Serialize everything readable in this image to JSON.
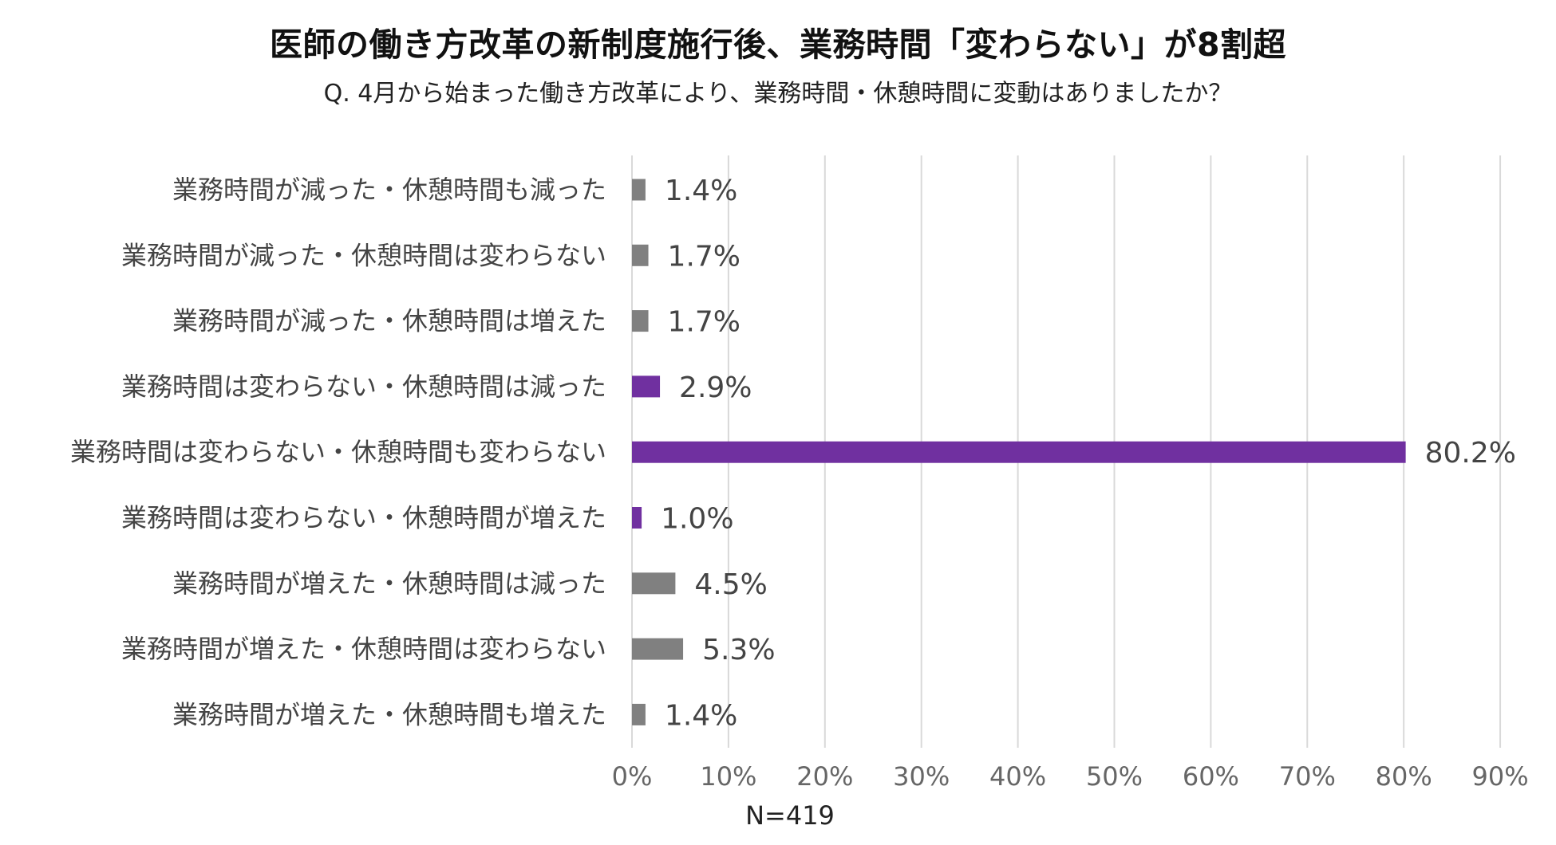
{
  "title": "医師の働き方改革の新制度施行後、業務時間「変わらない」が8割超",
  "subtitle": "Q. 4月から始まった働き方改革により、業務時間・休憩時間に変動はありましたか？",
  "note": "N=419",
  "colors": {
    "gray": "#808080",
    "purple": "#7030A0",
    "grid": "#d9d9d9"
  },
  "chart_data": {
    "type": "bar",
    "orientation": "horizontal",
    "categories": [
      "業務時間が減った・休憩時間も減った",
      "業務時間が減った・休憩時間は変わらない",
      "業務時間が減った・休憩時間は増えた",
      "業務時間は変わらない・休憩時間は減った",
      "業務時間は変わらない・休憩時間も変わらない",
      "業務時間は変わらない・休憩時間が増えた",
      "業務時間が増えた・休憩時間は減った",
      "業務時間が増えた・休憩時間は変わらない",
      "業務時間が増えた・休憩時間も増えた"
    ],
    "values": [
      1.4,
      1.7,
      1.7,
      2.9,
      80.2,
      1.0,
      4.5,
      5.3,
      1.4
    ],
    "value_labels": [
      "1.4%",
      "1.7%",
      "1.7%",
      "2.9%",
      "80.2%",
      "1.0%",
      "4.5%",
      "5.3%",
      "1.4%"
    ],
    "bar_colors": [
      "gray",
      "gray",
      "gray",
      "purple",
      "purple",
      "purple",
      "gray",
      "gray",
      "gray"
    ],
    "xlim": [
      0,
      90
    ],
    "xticks": [
      0,
      10,
      20,
      30,
      40,
      50,
      60,
      70,
      80,
      90
    ],
    "xtick_labels": [
      "0%",
      "10%",
      "20%",
      "30%",
      "40%",
      "50%",
      "60%",
      "70%",
      "80%",
      "90%"
    ],
    "grid": "vertical",
    "legend": "none"
  }
}
